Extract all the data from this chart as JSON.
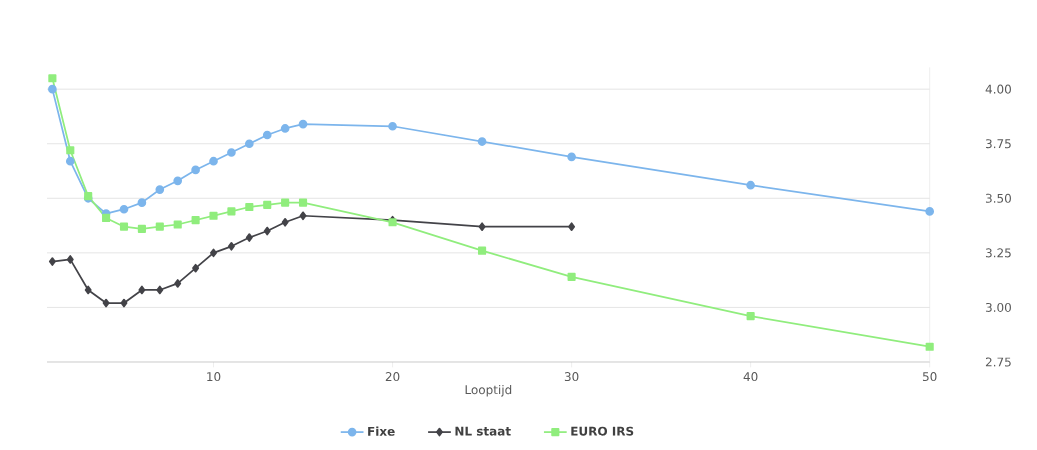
{
  "chart_data": {
    "type": "line",
    "xlabel": "Looptijd",
    "xlim": [
      0.7,
      50
    ],
    "xticks": [
      10,
      20,
      30,
      40,
      50
    ],
    "ylim": [
      2.75,
      4.1
    ],
    "yticks": [
      {
        "value": 2.75,
        "label": "2.75"
      },
      {
        "value": 3,
        "label": "3.00"
      },
      {
        "value": 3.25,
        "label": "3.25"
      },
      {
        "value": 3.5,
        "label": "3.50"
      },
      {
        "value": 3.75,
        "label": "3.75"
      },
      {
        "value": 4,
        "label": "4.00"
      }
    ],
    "grid": "y",
    "legend": "bottom",
    "series": [
      {
        "name": "Fixe",
        "color": "#7cb5ec",
        "marker": "circle",
        "x": [
          1,
          2,
          3,
          4,
          5,
          6,
          7,
          8,
          9,
          10,
          11,
          12,
          13,
          14,
          15,
          20,
          25,
          30,
          40,
          50
        ],
        "values": [
          4.0,
          3.67,
          3.5,
          3.43,
          3.45,
          3.48,
          3.54,
          3.58,
          3.63,
          3.67,
          3.71,
          3.75,
          3.79,
          3.82,
          3.84,
          3.83,
          3.76,
          3.69,
          3.56,
          3.44
        ]
      },
      {
        "name": "NL staat",
        "color": "#434348",
        "marker": "diamond",
        "x": [
          1,
          2,
          3,
          4,
          5,
          6,
          7,
          8,
          9,
          10,
          11,
          12,
          13,
          14,
          15,
          20,
          25,
          30
        ],
        "values": [
          3.21,
          3.22,
          3.08,
          3.02,
          3.02,
          3.08,
          3.08,
          3.11,
          3.18,
          3.25,
          3.28,
          3.32,
          3.35,
          3.39,
          3.42,
          3.4,
          3.37,
          3.37
        ]
      },
      {
        "name": "EURO IRS",
        "color": "#90ed7d",
        "marker": "square",
        "x": [
          1,
          2,
          3,
          4,
          5,
          6,
          7,
          8,
          9,
          10,
          11,
          12,
          13,
          14,
          15,
          20,
          25,
          30,
          40,
          50
        ],
        "values": [
          4.05,
          3.72,
          3.51,
          3.41,
          3.37,
          3.36,
          3.37,
          3.38,
          3.4,
          3.42,
          3.44,
          3.46,
          3.47,
          3.48,
          3.48,
          3.39,
          3.26,
          3.14,
          2.96,
          2.82
        ]
      }
    ]
  }
}
